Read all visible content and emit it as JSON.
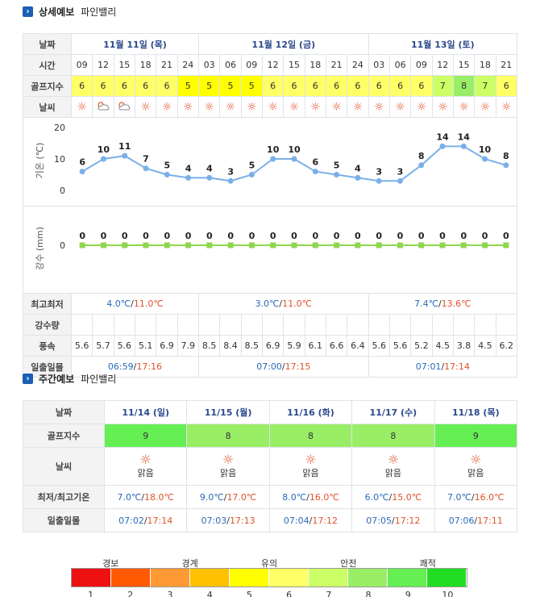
{
  "detail": {
    "section_title": "상세예보",
    "place": "파인밸리",
    "row_labels": {
      "date": "날짜",
      "time": "시간",
      "golf_index": "골프지수",
      "weather": "날씨",
      "temp": "기온 (℃)",
      "precip": "강수 (mm)",
      "minmax": "최고최저",
      "rainfall": "강수량",
      "wind": "풍속",
      "sunrise": "일출일몰"
    },
    "days": [
      {
        "label": "11월 11일 (목)",
        "minmax_low": "4.0℃",
        "minmax_high": "11.0℃",
        "sunrise": "06:59",
        "sunset": "17:16"
      },
      {
        "label": "11월 12일 (금)",
        "minmax_low": "3.0℃",
        "minmax_high": "11.0℃",
        "sunrise": "07:00",
        "sunset": "17:15"
      },
      {
        "label": "11월 13일 (토)",
        "minmax_low": "7.4℃",
        "minmax_high": "13.6℃",
        "sunrise": "07:01",
        "sunset": "17:14"
      }
    ],
    "times": [
      "09",
      "12",
      "15",
      "18",
      "21",
      "24",
      "03",
      "06",
      "09",
      "12",
      "15",
      "18",
      "21",
      "24",
      "03",
      "06",
      "09",
      "12",
      "15",
      "18",
      "21"
    ],
    "golf_index": [
      "6",
      "6",
      "6",
      "6",
      "6",
      "5",
      "5",
      "5",
      "5",
      "6",
      "6",
      "6",
      "6",
      "6",
      "6",
      "6",
      "6",
      "7",
      "8",
      "7",
      "6"
    ],
    "weather_icons": [
      "sun-icon",
      "cloud-sun-icon",
      "cloud-sun-icon",
      "sun-icon",
      "sun-icon",
      "sun-icon",
      "sun-icon",
      "sun-icon",
      "sun-icon",
      "sun-icon",
      "sun-icon",
      "sun-icon",
      "sun-icon",
      "sun-icon",
      "sun-icon",
      "sun-icon",
      "sun-icon",
      "sun-icon",
      "sun-icon",
      "sun-icon",
      "sun-icon"
    ],
    "wind": [
      "5.6",
      "5.7",
      "5.6",
      "5.1",
      "6.9",
      "7.9",
      "8.5",
      "8.4",
      "8.5",
      "6.9",
      "5.9",
      "6.1",
      "6.6",
      "6.4",
      "5.6",
      "5.6",
      "5.2",
      "4.5",
      "3.8",
      "4.5",
      "6.2"
    ]
  },
  "chart_data": [
    {
      "type": "line",
      "ylabel": "기온 (℃)",
      "yticks": [
        "20",
        "10",
        "0"
      ],
      "ylim": [
        0,
        20
      ],
      "values": [
        6,
        10,
        11,
        7,
        5,
        4,
        4,
        3,
        5,
        10,
        10,
        6,
        5,
        4,
        3,
        3,
        8,
        14,
        14,
        10,
        8
      ],
      "labels": [
        "6",
        "10",
        "11",
        "7",
        "5",
        "4",
        "4",
        "3",
        "5",
        "10",
        "10",
        "6",
        "5",
        "4",
        "3",
        "3",
        "8",
        "14",
        "14",
        "10",
        "8"
      ],
      "color": "#7ab0e8"
    },
    {
      "type": "line",
      "ylabel": "강수 (mm)",
      "yticks": [
        "0"
      ],
      "values": [
        0,
        0,
        0,
        0,
        0,
        0,
        0,
        0,
        0,
        0,
        0,
        0,
        0,
        0,
        0,
        0,
        0,
        0,
        0,
        0,
        0
      ],
      "labels": [
        "0",
        "0",
        "0",
        "0",
        "0",
        "0",
        "0",
        "0",
        "0",
        "0",
        "0",
        "0",
        "0",
        "0",
        "0",
        "0",
        "0",
        "0",
        "0",
        "0",
        "0"
      ],
      "color": "#8fd64c"
    }
  ],
  "weekly": {
    "section_title": "주간예보",
    "place": "파인밸리",
    "row_labels": {
      "date": "날짜",
      "golf_index": "골프지수",
      "weather": "날씨",
      "minmax": "최저/최고기온",
      "sunrise": "일출일몰"
    },
    "days": [
      {
        "date": "11/14 (일)",
        "golf": "9",
        "golf_color": "#66ee55",
        "weather": "맑음",
        "low": "7.0℃",
        "high": "18.0℃",
        "sunrise": "07:02",
        "sunset": "17:14"
      },
      {
        "date": "11/15 (월)",
        "golf": "8",
        "golf_color": "#99ee66",
        "weather": "맑음",
        "low": "9.0℃",
        "high": "17.0℃",
        "sunrise": "07:03",
        "sunset": "17:13"
      },
      {
        "date": "11/16 (화)",
        "golf": "8",
        "golf_color": "#99ee66",
        "weather": "맑음",
        "low": "8.0℃",
        "high": "16.0℃",
        "sunrise": "07:04",
        "sunset": "17:12"
      },
      {
        "date": "11/17 (수)",
        "golf": "8",
        "golf_color": "#99ee66",
        "weather": "맑음",
        "low": "6.0℃",
        "high": "15.0℃",
        "sunrise": "07:05",
        "sunset": "17:12"
      },
      {
        "date": "11/18 (목)",
        "golf": "9",
        "golf_color": "#66ee55",
        "weather": "맑음",
        "low": "7.0℃",
        "high": "16.0℃",
        "sunrise": "07:06",
        "sunset": "17:11"
      }
    ]
  },
  "legend": {
    "labels": [
      "경보",
      "경계",
      "유의",
      "안전",
      "쾌적"
    ],
    "numbers": [
      "1",
      "2",
      "3",
      "4",
      "5",
      "6",
      "7",
      "8",
      "9",
      "10"
    ],
    "colors": [
      "#ee1111",
      "#ff5a00",
      "#ff9933",
      "#ffc000",
      "#ffff00",
      "#ffff66",
      "#ccff66",
      "#99ee66",
      "#66ee55",
      "#22dd22"
    ]
  },
  "golf_colors": {
    "5": "#ffff00",
    "6": "#ffff66",
    "7": "#ccff66",
    "8": "#99ee66",
    "9": "#66ee55"
  }
}
